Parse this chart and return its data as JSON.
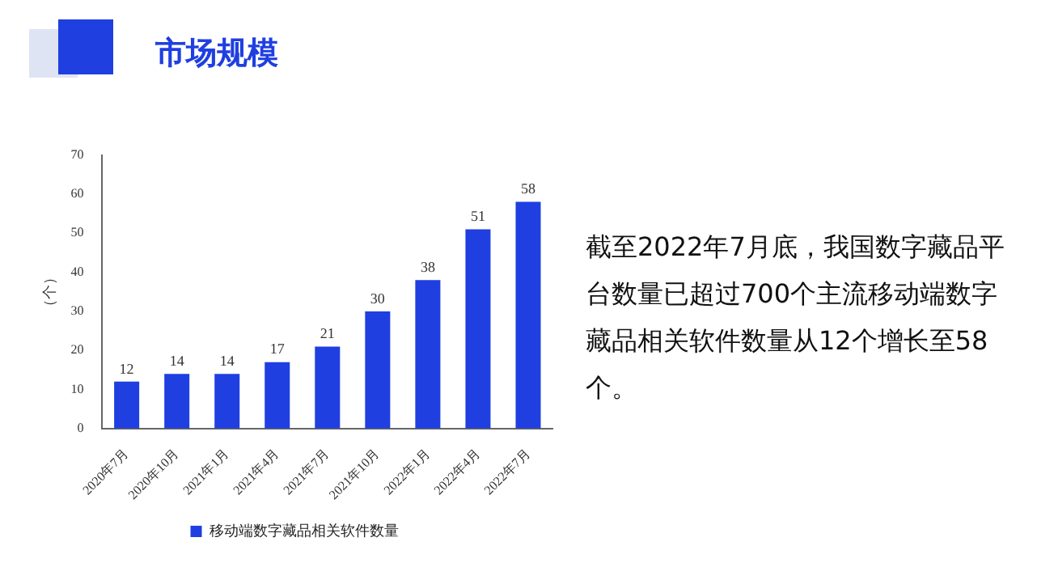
{
  "chart_data": {
    "type": "bar",
    "title": "市场规模",
    "ylabel": "（个）",
    "categories": [
      "2020年7月",
      "2020年10月",
      "2021年1月",
      "2021年4月",
      "2021年7月",
      "2021年10月",
      "2022年1月",
      "2022年4月",
      "2022年7月"
    ],
    "series": [
      {
        "name": "移动端数字藏品相关软件数量",
        "color": "#1f3fe0",
        "values": [
          12,
          14,
          14,
          17,
          21,
          30,
          38,
          51,
          58
        ]
      }
    ],
    "ylim": [
      0,
      70
    ],
    "yticks": [
      0,
      10,
      20,
      30,
      40,
      50,
      60,
      70
    ],
    "grid": false,
    "legend": "bottom",
    "data_labels": true,
    "annotations": [
      "截至2022年7月底，我国数字藏品平台数量已超过700个主流移动端数字藏品相关软件数量从12个增长至58个。"
    ]
  }
}
